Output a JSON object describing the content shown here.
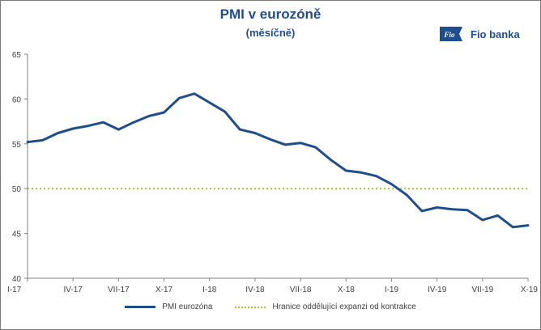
{
  "chart_data": {
    "type": "line",
    "title": "PMI v eurozóně",
    "subtitle": "(měsíčně)",
    "ylim": [
      40,
      65
    ],
    "yticks": [
      40,
      45,
      50,
      55,
      60,
      65
    ],
    "xtick_labels": [
      "I-17",
      "IV-17",
      "VII-17",
      "X-17",
      "I-18",
      "IV-18",
      "VII-18",
      "X-18",
      "I-19",
      "IV-19",
      "VII-19",
      "X-19"
    ],
    "x": [
      "I-17",
      "II-17",
      "III-17",
      "IV-17",
      "V-17",
      "VI-17",
      "VII-17",
      "VIII-17",
      "IX-17",
      "X-17",
      "XI-17",
      "XII-17",
      "I-18",
      "II-18",
      "III-18",
      "IV-18",
      "V-18",
      "VI-18",
      "VII-18",
      "VIII-18",
      "IX-18",
      "X-18",
      "XI-18",
      "XII-18",
      "I-19",
      "II-19",
      "III-19",
      "IV-19",
      "V-19",
      "VI-19",
      "VII-19",
      "VIII-19",
      "IX-19",
      "X-19"
    ],
    "series": [
      {
        "name": "PMI eurozóna",
        "color": "#1f4e8c",
        "values": [
          55.2,
          55.4,
          56.2,
          56.7,
          57.0,
          57.4,
          56.6,
          57.4,
          58.1,
          58.5,
          60.1,
          60.6,
          59.6,
          58.6,
          56.6,
          56.2,
          55.5,
          54.9,
          55.1,
          54.6,
          53.2,
          52.0,
          51.8,
          51.4,
          50.5,
          49.3,
          47.5,
          47.9,
          47.7,
          47.6,
          46.5,
          47.0,
          45.7,
          45.9
        ]
      }
    ],
    "reference_line": {
      "name": "Hranice oddělující expanzi od kontrakce",
      "value": 50,
      "color": "#a6c520"
    },
    "grid": false,
    "legend_position": "bottom"
  },
  "logo": {
    "text": "Fio banka",
    "mark": "Fio"
  }
}
